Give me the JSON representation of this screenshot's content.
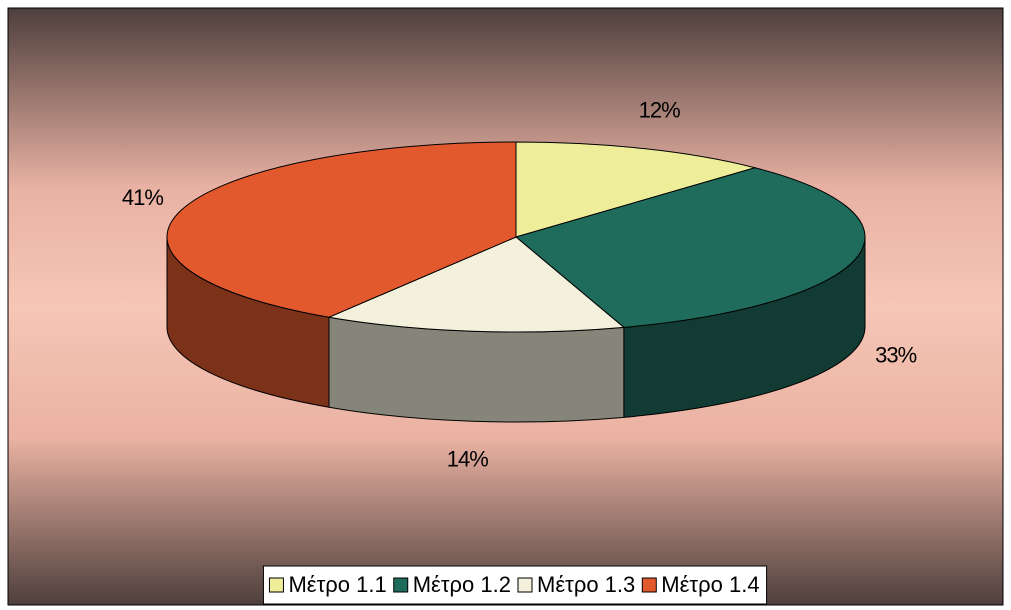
{
  "chart_data": {
    "type": "pie3d",
    "categories": [
      "Μέτρο 1.1",
      "Μέτρο 1.2",
      "Μέτρο 1.3",
      "Μέτρο 1.4"
    ],
    "values": [
      12,
      33,
      14,
      41
    ],
    "value_labels": [
      "12%",
      "33%",
      "14%",
      "41%"
    ],
    "colors": [
      "#eeee9a",
      "#1f6b5c",
      "#f3f1dc",
      "#e2592d"
    ],
    "legend": "bottom"
  }
}
